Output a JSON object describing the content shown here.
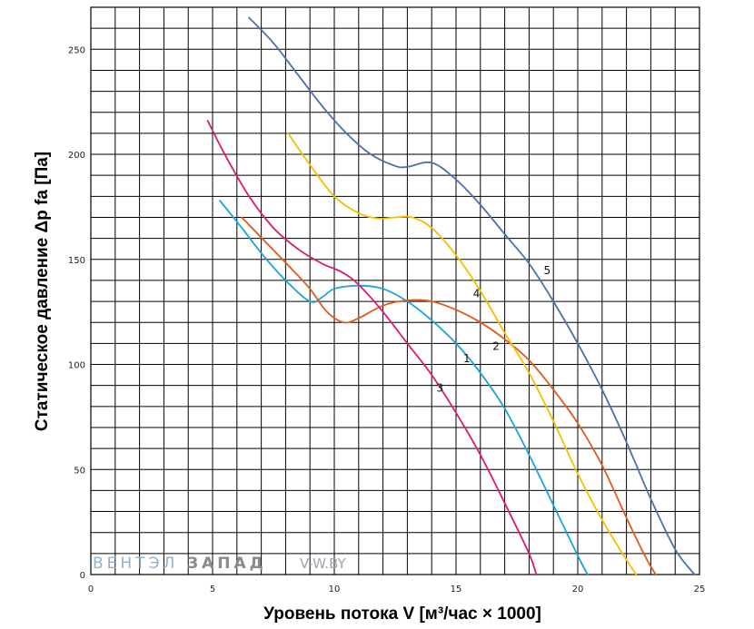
{
  "chart_data": {
    "type": "line",
    "xlabel": "Уровень потока V [м³/час × 1000]",
    "ylabel": "Статическое давление Δр fa [Па]",
    "xlim": [
      0,
      25
    ],
    "ylim": [
      0,
      270
    ],
    "x_ticks": [
      0,
      5,
      10,
      15,
      20,
      25
    ],
    "y_ticks": [
      0,
      50,
      100,
      150,
      200,
      250
    ],
    "x_tick_labels": [
      "0",
      "5",
      "10",
      "15",
      "20",
      "25"
    ],
    "y_tick_labels": [
      "0",
      "50",
      "100",
      "150",
      "200",
      "250"
    ],
    "grid": true,
    "series": [
      {
        "name": "1",
        "color": "#1ba3dc",
        "label_at": [
          15.3,
          101
        ],
        "points": [
          [
            5.3,
            178
          ],
          [
            6.2,
            165
          ],
          [
            7,
            153
          ],
          [
            8,
            140
          ],
          [
            9,
            130
          ],
          [
            9.5,
            132
          ],
          [
            10,
            136
          ],
          [
            11,
            137.5
          ],
          [
            12,
            136
          ],
          [
            13,
            130
          ],
          [
            14,
            121
          ],
          [
            15,
            110
          ],
          [
            16,
            96
          ],
          [
            17,
            79
          ],
          [
            18,
            57
          ],
          [
            19,
            33
          ],
          [
            20,
            9
          ],
          [
            20.4,
            0
          ]
        ]
      },
      {
        "name": "2",
        "color": "#e05a1c",
        "label_at": [
          16.5,
          107
        ],
        "points": [
          [
            6.2,
            170
          ],
          [
            7.2,
            158
          ],
          [
            8.2,
            146
          ],
          [
            9,
            136
          ],
          [
            9.7,
            125
          ],
          [
            10.4,
            120
          ],
          [
            11,
            122
          ],
          [
            12,
            128
          ],
          [
            13,
            130.5
          ],
          [
            14,
            130
          ],
          [
            15,
            126
          ],
          [
            16,
            120
          ],
          [
            17,
            112
          ],
          [
            18,
            102
          ],
          [
            19,
            88
          ],
          [
            20,
            72
          ],
          [
            21,
            52
          ],
          [
            22,
            27
          ],
          [
            22.8,
            8
          ],
          [
            23.2,
            0
          ]
        ]
      },
      {
        "name": "3",
        "color": "#d81b74",
        "label_at": [
          14.2,
          87
        ],
        "points": [
          [
            4.8,
            216
          ],
          [
            5.5,
            200
          ],
          [
            6.5,
            180
          ],
          [
            7.5,
            165
          ],
          [
            8.5,
            155
          ],
          [
            9.5,
            148
          ],
          [
            10.3,
            144
          ],
          [
            11,
            138
          ],
          [
            12,
            125
          ],
          [
            13,
            110
          ],
          [
            14,
            95
          ],
          [
            15,
            77
          ],
          [
            16,
            57
          ],
          [
            17,
            34
          ],
          [
            18,
            10
          ],
          [
            18.3,
            0
          ]
        ]
      },
      {
        "name": "4",
        "color": "#f7be00",
        "label_at": [
          15.7,
          132
        ],
        "points": [
          [
            8.1,
            210
          ],
          [
            9,
            195
          ],
          [
            10,
            180
          ],
          [
            11,
            172
          ],
          [
            11.8,
            169.5
          ],
          [
            12.5,
            170
          ],
          [
            13.2,
            170
          ],
          [
            14,
            165
          ],
          [
            15,
            152
          ],
          [
            16,
            135
          ],
          [
            17,
            115
          ],
          [
            18,
            96
          ],
          [
            19,
            73
          ],
          [
            20,
            48
          ],
          [
            21,
            26
          ],
          [
            22,
            7
          ],
          [
            22.4,
            0
          ]
        ]
      },
      {
        "name": "5",
        "color": "#4d6fae",
        "label_at": [
          18.6,
          143
        ],
        "points": [
          [
            6.5,
            265
          ],
          [
            7.5,
            253
          ],
          [
            8.5,
            238
          ],
          [
            9.5,
            223
          ],
          [
            10.5,
            210
          ],
          [
            11.5,
            200
          ],
          [
            12.5,
            194.5
          ],
          [
            13,
            194
          ],
          [
            14,
            196
          ],
          [
            15,
            188
          ],
          [
            16,
            176
          ],
          [
            17,
            162
          ],
          [
            18,
            148
          ],
          [
            19,
            130
          ],
          [
            20,
            110
          ],
          [
            21,
            88
          ],
          [
            22,
            63
          ],
          [
            23,
            36
          ],
          [
            24,
            12
          ],
          [
            24.8,
            0
          ]
        ]
      }
    ]
  },
  "watermark": {
    "brand_part1": "ВЕНТЭЛ",
    "brand_part2": "ЗАПАД",
    "site": "V-W.BY"
  }
}
